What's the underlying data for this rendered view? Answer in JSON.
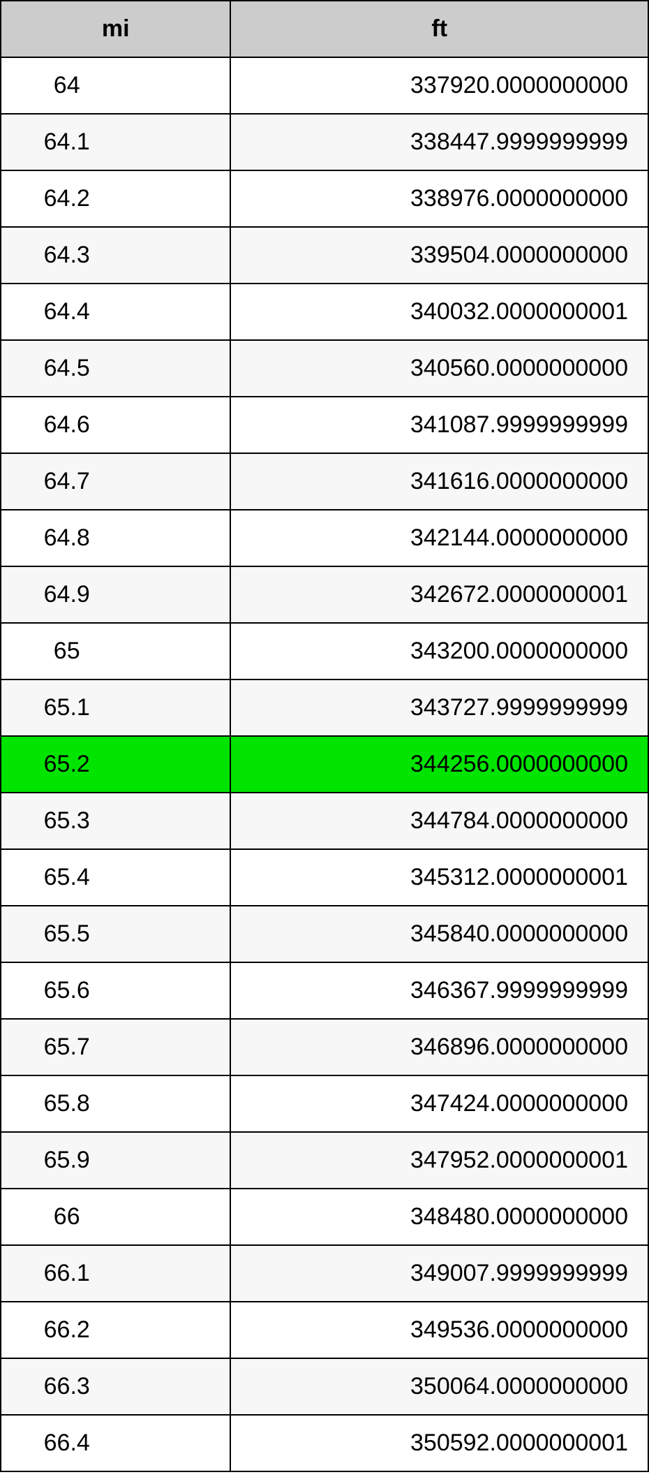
{
  "table": {
    "header_bg": "#cccccc",
    "border_color": "#000000",
    "alt_row_bg": "#f7f7f7",
    "highlight_bg": "#00e400",
    "font_size": 34,
    "columns": [
      {
        "key": "mi",
        "label": "mi",
        "width_pct": 35.5,
        "align": "center"
      },
      {
        "key": "ft",
        "label": "ft",
        "width_pct": 64.5,
        "align": "right"
      }
    ],
    "rows": [
      {
        "mi": "64",
        "ft": "337920.0000000000",
        "highlight": false
      },
      {
        "mi": "64.1",
        "ft": "338447.9999999999",
        "highlight": false
      },
      {
        "mi": "64.2",
        "ft": "338976.0000000000",
        "highlight": false
      },
      {
        "mi": "64.3",
        "ft": "339504.0000000000",
        "highlight": false
      },
      {
        "mi": "64.4",
        "ft": "340032.0000000001",
        "highlight": false
      },
      {
        "mi": "64.5",
        "ft": "340560.0000000000",
        "highlight": false
      },
      {
        "mi": "64.6",
        "ft": "341087.9999999999",
        "highlight": false
      },
      {
        "mi": "64.7",
        "ft": "341616.0000000000",
        "highlight": false
      },
      {
        "mi": "64.8",
        "ft": "342144.0000000000",
        "highlight": false
      },
      {
        "mi": "64.9",
        "ft": "342672.0000000001",
        "highlight": false
      },
      {
        "mi": "65",
        "ft": "343200.0000000000",
        "highlight": false
      },
      {
        "mi": "65.1",
        "ft": "343727.9999999999",
        "highlight": false
      },
      {
        "mi": "65.2",
        "ft": "344256.0000000000",
        "highlight": true
      },
      {
        "mi": "65.3",
        "ft": "344784.0000000000",
        "highlight": false
      },
      {
        "mi": "65.4",
        "ft": "345312.0000000001",
        "highlight": false
      },
      {
        "mi": "65.5",
        "ft": "345840.0000000000",
        "highlight": false
      },
      {
        "mi": "65.6",
        "ft": "346367.9999999999",
        "highlight": false
      },
      {
        "mi": "65.7",
        "ft": "346896.0000000000",
        "highlight": false
      },
      {
        "mi": "65.8",
        "ft": "347424.0000000000",
        "highlight": false
      },
      {
        "mi": "65.9",
        "ft": "347952.0000000001",
        "highlight": false
      },
      {
        "mi": "66",
        "ft": "348480.0000000000",
        "highlight": false
      },
      {
        "mi": "66.1",
        "ft": "349007.9999999999",
        "highlight": false
      },
      {
        "mi": "66.2",
        "ft": "349536.0000000000",
        "highlight": false
      },
      {
        "mi": "66.3",
        "ft": "350064.0000000000",
        "highlight": false
      },
      {
        "mi": "66.4",
        "ft": "350592.0000000001",
        "highlight": false
      }
    ]
  }
}
